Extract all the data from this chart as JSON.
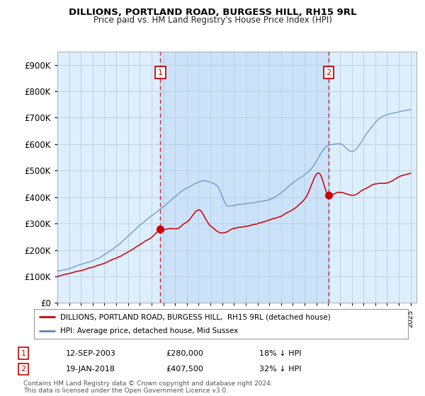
{
  "title": "DILLIONS, PORTLAND ROAD, BURGESS HILL, RH15 9RL",
  "subtitle": "Price paid vs. HM Land Registry's House Price Index (HPI)",
  "legend_label_red": "DILLIONS, PORTLAND ROAD, BURGESS HILL,  RH15 9RL (detached house)",
  "legend_label_blue": "HPI: Average price, detached house, Mid Sussex",
  "transaction1_date": "12-SEP-2003",
  "transaction1_price": 280000,
  "transaction1_label": "18% ↓ HPI",
  "transaction2_date": "19-JAN-2018",
  "transaction2_price": 407500,
  "transaction2_label": "32% ↓ HPI",
  "footer": "Contains HM Land Registry data © Crown copyright and database right 2024.\nThis data is licensed under the Open Government Licence v3.0.",
  "ylim": [
    0,
    950000
  ],
  "yticks": [
    0,
    100000,
    200000,
    300000,
    400000,
    500000,
    600000,
    700000,
    800000,
    900000
  ],
  "color_red": "#cc0000",
  "color_blue": "#5588bb",
  "color_vline": "#cc0000",
  "bg_color": "#ffffff",
  "plot_bg": "#ddeeff",
  "grid_color": "#bbccdd",
  "between_fill": "#cce0f0",
  "transaction1_x": 2003.75,
  "transaction2_x": 2018.05,
  "xmin": 1995,
  "xmax": 2025
}
